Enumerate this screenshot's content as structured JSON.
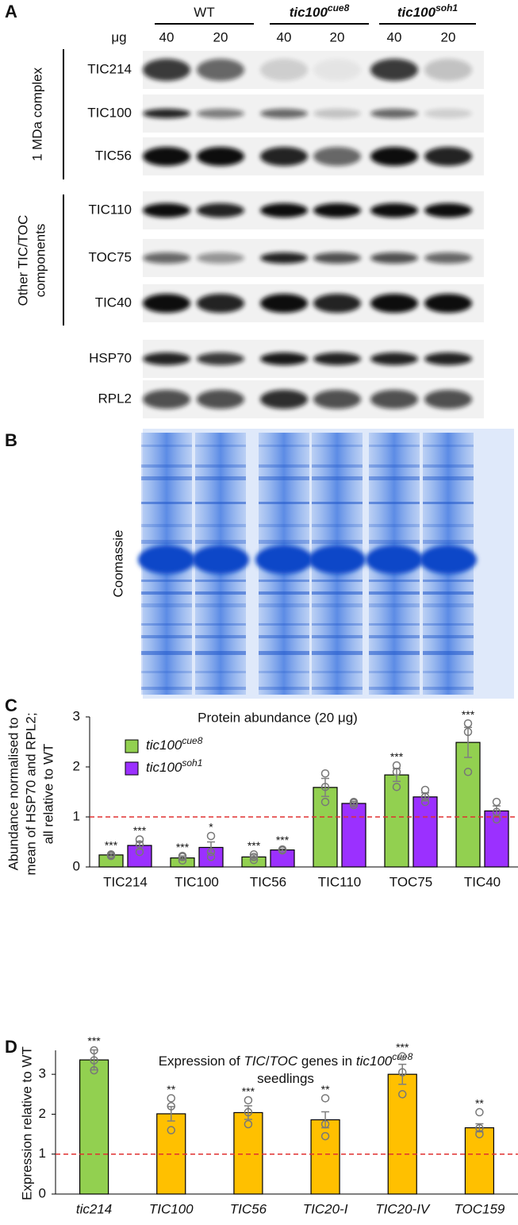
{
  "panel_labels": [
    "A",
    "B",
    "C",
    "D"
  ],
  "blot": {
    "genotypes": [
      {
        "name": "WT"
      },
      {
        "name": "tic100",
        "superscript": "cue8"
      },
      {
        "name": "tic100",
        "superscript": "soh1"
      }
    ],
    "amount_unit": "μg",
    "amounts": [
      40,
      20,
      40,
      20,
      40,
      20
    ],
    "groups": [
      {
        "label_lines": [
          "1 MDa complex"
        ]
      },
      {
        "label_lines": [
          "Other TIC/TOC",
          "components"
        ]
      }
    ],
    "rows": [
      "TIC214",
      "TIC100",
      "TIC56",
      "TIC110",
      "TOC75",
      "TIC40",
      "HSP70",
      "RPL2"
    ],
    "coomassie_label": "Coomassie"
  },
  "chart_data": [
    {
      "type": "bar",
      "title": "Protein abundance (20 μg)",
      "ylabel_lines": [
        "Abundance normalised to",
        "mean of HSP70 and RPL2;",
        "all relative to WT"
      ],
      "categories": [
        "TIC214",
        "TIC100",
        "TIC56",
        "TIC110",
        "TOC75",
        "TIC40"
      ],
      "series": [
        {
          "name": "tic100",
          "name_superscript": "cue8",
          "color": "#92d050",
          "values": [
            0.24,
            0.18,
            0.2,
            1.59,
            1.84,
            2.49
          ],
          "errors": [
            0.02,
            0.04,
            0.04,
            0.18,
            0.13,
            0.3
          ],
          "points": [
            [
              0.22,
              0.24,
              0.25
            ],
            [
              0.13,
              0.2,
              0.22
            ],
            [
              0.14,
              0.2,
              0.25
            ],
            [
              1.3,
              1.6,
              1.87
            ],
            [
              1.6,
              1.9,
              2.03
            ],
            [
              1.9,
              2.7,
              2.87
            ]
          ],
          "significance": [
            "***",
            "***",
            "***",
            null,
            "***",
            "***"
          ]
        },
        {
          "name": "tic100",
          "name_superscript": "soh1",
          "color": "#9b30ff",
          "values": [
            0.43,
            0.39,
            0.34,
            1.27,
            1.4,
            1.12
          ],
          "errors": [
            0.08,
            0.11,
            0.02,
            0.04,
            0.08,
            0.1
          ],
          "points": [
            [
              0.3,
              0.45,
              0.55
            ],
            [
              0.2,
              0.3,
              0.62
            ],
            [
              0.33,
              0.34,
              0.35
            ],
            [
              1.24,
              1.28,
              1.3
            ],
            [
              1.3,
              1.4,
              1.54
            ],
            [
              0.95,
              1.1,
              1.3
            ]
          ],
          "significance": [
            "***",
            "*",
            "***",
            null,
            null,
            null
          ]
        }
      ],
      "ylim": [
        0,
        3
      ],
      "yticks": [
        0,
        1,
        2,
        3
      ],
      "reference_line": {
        "value": 1,
        "color": "#e03030"
      },
      "error_color": "#7f7f7f",
      "legend": "upper left"
    },
    {
      "type": "bar",
      "title_lines": [
        [
          {
            "text": "Expression of "
          },
          {
            "text": "TIC",
            "italic": true
          },
          {
            "text": "/"
          },
          {
            "text": "TOC",
            "italic": true
          },
          {
            "text": " genes in "
          },
          {
            "text": "tic100",
            "italic": true
          },
          {
            "text": "cue8",
            "italic": true,
            "superscript": true
          }
        ],
        [
          {
            "text": "seedlings"
          }
        ]
      ],
      "ylabel_lines": [
        "Expression relative to WT"
      ],
      "categories": [
        "tic214",
        "TIC100",
        "TIC56",
        "TIC20-I",
        "TIC20-IV",
        "TOC159"
      ],
      "category_italic": true,
      "series": [
        {
          "colors": [
            "#92d050",
            "#ffc000",
            "#ffc000",
            "#ffc000",
            "#ffc000",
            "#ffc000"
          ],
          "values": [
            3.36,
            2.01,
            2.04,
            1.86,
            3.0,
            1.66
          ],
          "errors": [
            0.25,
            0.18,
            0.17,
            0.2,
            0.25,
            0.1
          ],
          "points": [
            [
              3.1,
              3.35,
              3.6
            ],
            [
              1.6,
              2.2,
              2.4
            ],
            [
              1.75,
              2.05,
              2.35
            ],
            [
              1.45,
              1.75,
              2.4
            ],
            [
              2.5,
              3.05,
              3.45
            ],
            [
              1.5,
              1.65,
              2.05
            ]
          ],
          "significance": [
            "***",
            "**",
            "***",
            "**",
            "***",
            "**"
          ]
        }
      ],
      "ylim": [
        0,
        3.6
      ],
      "yticks": [
        0,
        1,
        2,
        3
      ],
      "reference_line": {
        "value": 1,
        "color": "#e03030"
      },
      "error_color": "#7f7f7f"
    }
  ]
}
